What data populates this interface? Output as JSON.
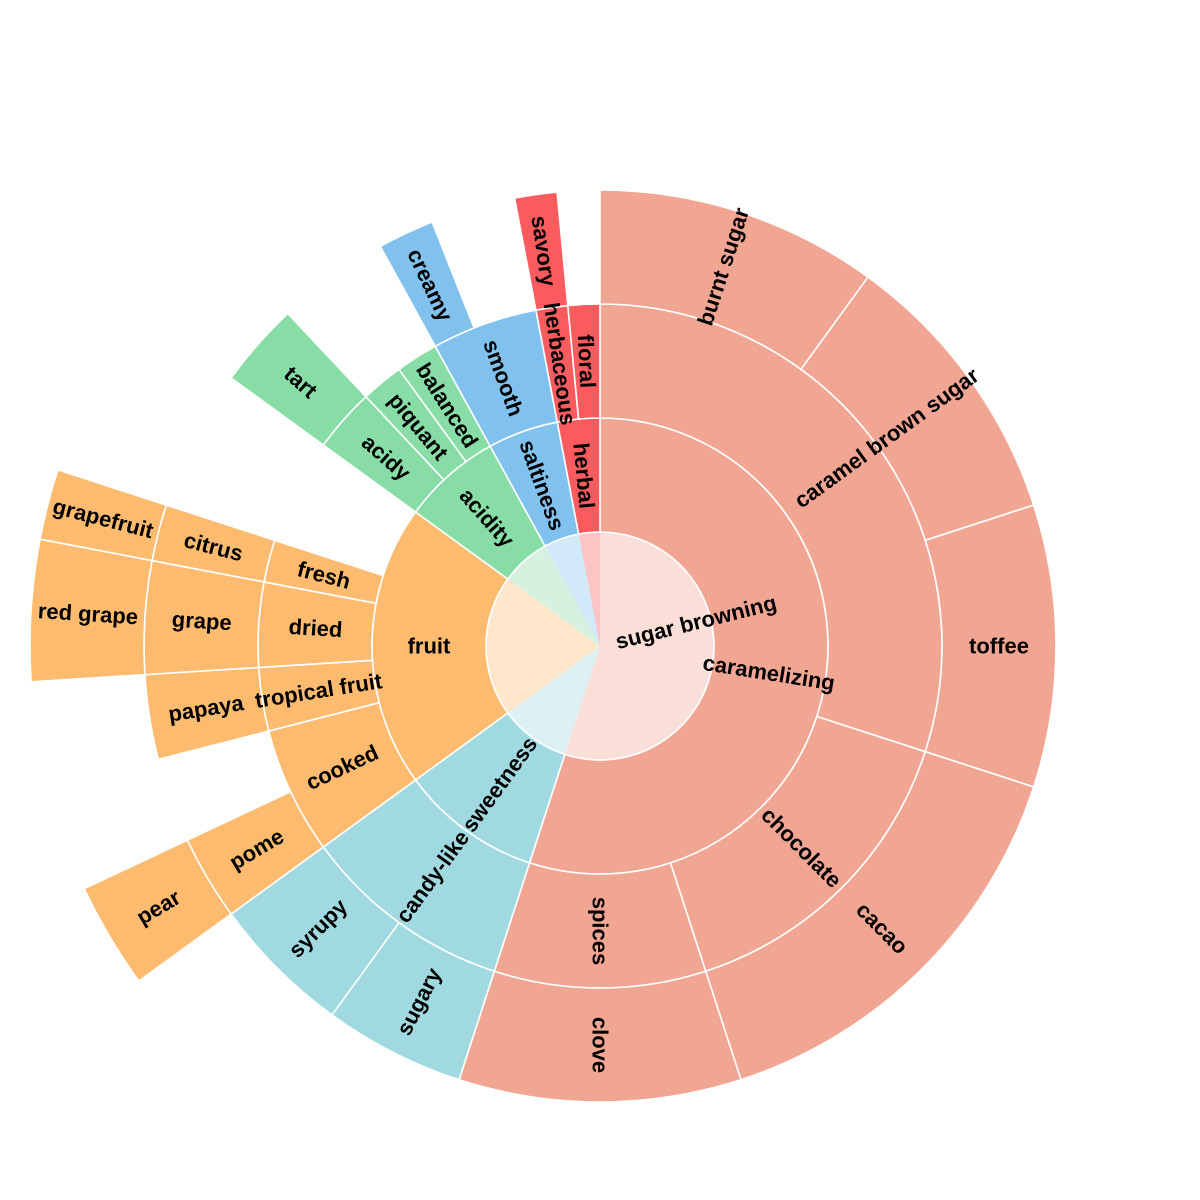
{
  "chart_data": {
    "type": "sunburst",
    "title": "",
    "center": {
      "label": "sugar browning"
    },
    "groups": [
      {
        "name": "caramelizing",
        "color": "#f0a693",
        "value": 55,
        "children": [
          {
            "name": "caramel",
            "value": 30,
            "children": [
              {
                "name": "burnt sugar",
                "value": 10
              },
              {
                "name": "brown sugar",
                "value": 10
              },
              {
                "name": "toffee",
                "value": 10
              }
            ]
          },
          {
            "name": "chocolate",
            "value": 15,
            "children": [
              {
                "name": "cacao",
                "value": 15
              }
            ]
          },
          {
            "name": "spices",
            "value": 10,
            "children": [
              {
                "name": "clove",
                "value": 10
              }
            ]
          }
        ]
      },
      {
        "name": "sweetness",
        "color": "#a1d9e0",
        "value": 10,
        "children": [
          {
            "name": "candy-like",
            "value": 10,
            "children": [
              {
                "name": "sugary",
                "value": 5
              },
              {
                "name": "syrupy",
                "value": 5
              }
            ]
          }
        ]
      },
      {
        "name": "fruit",
        "color": "#fdbb70",
        "value": 20,
        "children": [
          {
            "name": "cooked",
            "value": 6,
            "children": [
              {
                "name": "pome",
                "value": 3,
                "children": [
                  {
                    "name": "pear",
                    "value": 3
                  }
                ]
              }
            ]
          },
          {
            "name": "tropical fruit",
            "value": 3,
            "children": [
              {
                "name": "papaya",
                "value": 3
              }
            ]
          },
          {
            "name": "dried",
            "value": 4,
            "children": [
              {
                "name": "grape",
                "value": 4,
                "children": [
                  {
                    "name": "red grape",
                    "value": 4
                  }
                ]
              }
            ]
          },
          {
            "name": "fresh",
            "value": 2,
            "children": [
              {
                "name": "citrus",
                "value": 2,
                "children": [
                  {
                    "name": "grapefruit",
                    "value": 2
                  }
                ]
              }
            ]
          }
        ]
      },
      {
        "name": "acidity",
        "color": "#88dda6",
        "value": 7,
        "children": [
          {
            "name": "acidy",
            "value": 3,
            "children": [
              {
                "name": "tart",
                "value": 3
              }
            ]
          },
          {
            "name": "piquant",
            "value": 2
          },
          {
            "name": "balanced",
            "value": 2
          }
        ]
      },
      {
        "name": "saltiness",
        "color": "#80c1ee",
        "value": 5,
        "children": [
          {
            "name": "smooth",
            "value": 5,
            "children": [
              {
                "name": "creamy",
                "value": 2
              }
            ]
          }
        ]
      },
      {
        "name": "herbal",
        "color": "#f95b5e",
        "value": 3,
        "children": [
          {
            "name": "herbaceous",
            "value": 1.5,
            "children": [
              {
                "name": "savory",
                "value": 1.5
              }
            ]
          },
          {
            "name": "floral",
            "value": 1.5
          }
        ]
      }
    ]
  }
}
